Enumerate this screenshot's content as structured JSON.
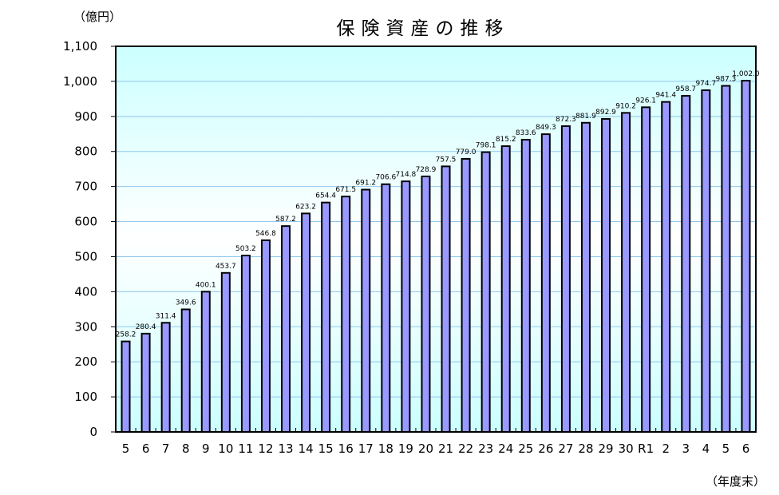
{
  "chart_data": {
    "type": "bar",
    "title": "保険資産の推移",
    "xlabel": "（年度末）",
    "ylabel": "（億円）",
    "ylim": [
      0,
      1100
    ],
    "yticks": [
      0,
      100,
      200,
      300,
      400,
      500,
      600,
      700,
      800,
      900,
      1000,
      1100
    ],
    "ytick_labels": [
      "0",
      "100",
      "200",
      "300",
      "400",
      "500",
      "600",
      "700",
      "800",
      "900",
      "1,000",
      "1,100"
    ],
    "grid": true,
    "legend": null,
    "categories": [
      "5",
      "6",
      "7",
      "8",
      "9",
      "10",
      "11",
      "12",
      "13",
      "14",
      "15",
      "16",
      "17",
      "18",
      "19",
      "20",
      "21",
      "22",
      "23",
      "24",
      "25",
      "26",
      "27",
      "28",
      "29",
      "30",
      "R1",
      "2",
      "3",
      "4",
      "5",
      "6"
    ],
    "values": [
      258.2,
      280.4,
      311.4,
      349.6,
      400.1,
      453.7,
      503.2,
      546.8,
      587.2,
      623.2,
      654.4,
      671.5,
      691.2,
      706.6,
      714.8,
      728.9,
      757.5,
      779.0,
      798.1,
      815.2,
      833.6,
      849.3,
      872.3,
      881.9,
      892.9,
      910.2,
      926.1,
      941.4,
      958.7,
      974.7,
      987.3,
      1002.0
    ],
    "value_labels": [
      "258.2",
      "280.4",
      "311.4",
      "349.6",
      "400.1",
      "453.7",
      "503.2",
      "546.8",
      "587.2",
      "623.2",
      "654.4",
      "671.5",
      "691.2",
      "706.6",
      "714.8",
      "728.9",
      "757.5",
      "779.0",
      "798.1",
      "815.2",
      "833.6",
      "849.3",
      "872.3",
      "881.9",
      "892.9",
      "910.2",
      "926.1",
      "941.4",
      "958.7",
      "974.7",
      "987.3",
      "1,002.0"
    ]
  },
  "colors": {
    "bar_fill": "#9999ff",
    "bar_stroke": "#000000",
    "gridline": "#8ec8ee",
    "plot_bg_top": "#ccffff",
    "plot_bg_mid": "#ffffff",
    "plot_bg_bottom": "#ccffff"
  }
}
